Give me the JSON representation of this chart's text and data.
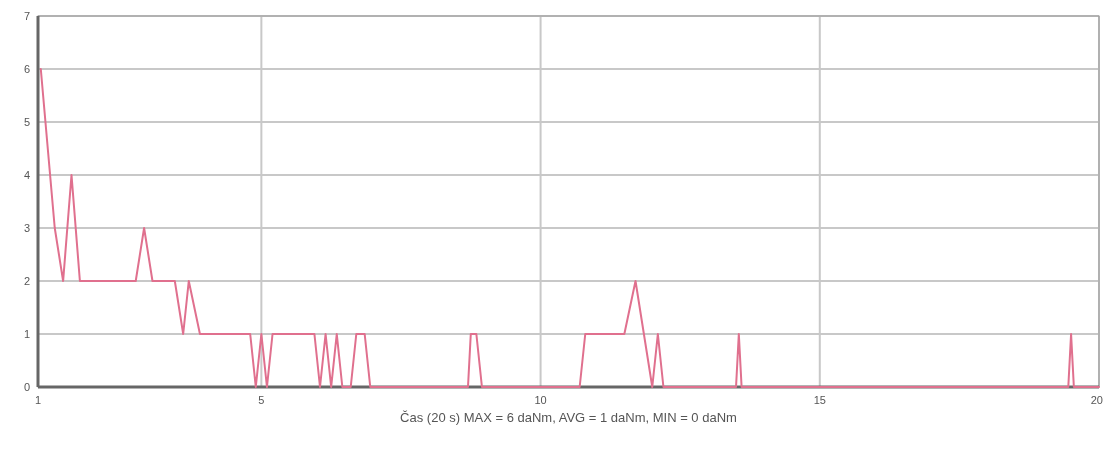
{
  "chart_data": {
    "type": "line",
    "xlabel": "Čas (20 s)    MAX = 6 daNm, AVG = 1 daNm, MIN = 0 daNm",
    "xlim": [
      1,
      20
    ],
    "xticks": [
      1,
      5,
      10,
      15,
      20
    ],
    "ylim": [
      0,
      7
    ],
    "yticks": [
      0,
      1,
      2,
      3,
      4,
      5,
      6,
      7
    ],
    "grid": true,
    "series": [
      {
        "color": "#e0708e",
        "x": [
          1.05,
          1.3,
          1.45,
          1.6,
          1.75,
          2.75,
          2.9,
          3.05,
          3.45,
          3.6,
          3.7,
          3.9,
          4.8,
          4.9,
          5.0,
          5.1,
          5.2,
          5.95,
          6.05,
          6.15,
          6.25,
          6.35,
          6.45,
          6.6,
          6.7,
          6.85,
          6.95,
          8.7,
          8.75,
          8.85,
          8.95,
          10.7,
          10.8,
          11.5,
          11.7,
          11.85,
          12.0,
          12.1,
          12.2,
          13.5,
          13.55,
          13.6,
          19.45,
          19.5,
          19.55,
          20
        ],
        "values": [
          6,
          3,
          2,
          4,
          2,
          2,
          3,
          2,
          2,
          1,
          2,
          1,
          1,
          0,
          1,
          0,
          1,
          1,
          0,
          1,
          0,
          1,
          0,
          0,
          1,
          1,
          0,
          0,
          1,
          1,
          0,
          0,
          1,
          1,
          2,
          1,
          0,
          1,
          0,
          0,
          1,
          0,
          0,
          1,
          0,
          0
        ]
      }
    ]
  }
}
